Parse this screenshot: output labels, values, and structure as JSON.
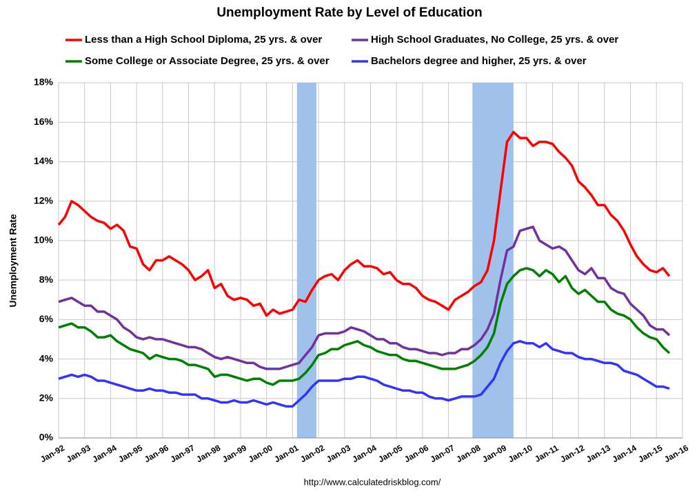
{
  "chart_data": {
    "type": "line",
    "title": "Unemployment Rate by Level of Education",
    "y_label": "Unemployment Rate",
    "source": "http://www.calculatedriskblog.com/",
    "x": [
      1992,
      1992.25,
      1992.5,
      1992.75,
      1993,
      1993.25,
      1993.5,
      1993.75,
      1994,
      1994.25,
      1994.5,
      1994.75,
      1995,
      1995.25,
      1995.5,
      1995.75,
      1996,
      1996.25,
      1996.5,
      1996.75,
      1997,
      1997.25,
      1997.5,
      1997.75,
      1998,
      1998.25,
      1998.5,
      1998.75,
      1999,
      1999.25,
      1999.5,
      1999.75,
      2000,
      2000.25,
      2000.5,
      2000.75,
      2001,
      2001.25,
      2001.5,
      2001.75,
      2002,
      2002.25,
      2002.5,
      2002.75,
      2003,
      2003.25,
      2003.5,
      2003.75,
      2004,
      2004.25,
      2004.5,
      2004.75,
      2005,
      2005.25,
      2005.5,
      2005.75,
      2006,
      2006.25,
      2006.5,
      2006.75,
      2007,
      2007.25,
      2007.5,
      2007.75,
      2008,
      2008.25,
      2008.5,
      2008.75,
      2009,
      2009.25,
      2009.5,
      2009.75,
      2010,
      2010.25,
      2010.5,
      2010.75,
      2011,
      2011.25,
      2011.5,
      2011.75,
      2012,
      2012.25,
      2012.5,
      2012.75,
      2013,
      2013.25,
      2013.5,
      2013.75,
      2014,
      2014.25,
      2014.5,
      2014.75,
      2015,
      2015.25,
      2015.5
    ],
    "series": [
      {
        "name": "Less than a High School Diploma, 25 yrs. & over",
        "color": "#ff0000",
        "values": [
          10.8,
          11.2,
          12.0,
          11.8,
          11.5,
          11.2,
          11.0,
          10.9,
          10.6,
          10.8,
          10.5,
          9.7,
          9.6,
          8.8,
          8.5,
          9.0,
          9.0,
          9.2,
          9.0,
          8.8,
          8.5,
          8.0,
          8.2,
          8.5,
          7.6,
          7.8,
          7.2,
          7.0,
          7.1,
          7.0,
          6.7,
          6.8,
          6.2,
          6.5,
          6.3,
          6.4,
          6.5,
          7.0,
          6.9,
          7.5,
          8.0,
          8.2,
          8.3,
          8.0,
          8.5,
          8.8,
          9.0,
          8.7,
          8.7,
          8.6,
          8.3,
          8.4,
          8.0,
          7.8,
          7.8,
          7.6,
          7.2,
          7.0,
          6.9,
          6.7,
          6.5,
          7.0,
          7.2,
          7.4,
          7.7,
          7.9,
          8.5,
          10.0,
          12.5,
          15.0,
          15.5,
          15.2,
          15.2,
          14.8,
          15.0,
          15.0,
          14.9,
          14.5,
          14.2,
          13.8,
          13.0,
          12.7,
          12.3,
          11.8,
          11.8,
          11.3,
          11.0,
          10.5,
          9.8,
          9.2,
          8.8,
          8.5,
          8.4,
          8.6,
          8.2
        ]
      },
      {
        "name": "High School Graduates, No College, 25 yrs. & over",
        "color": "#7030a0",
        "values": [
          6.9,
          7.0,
          7.1,
          6.9,
          6.7,
          6.7,
          6.4,
          6.4,
          6.2,
          6.0,
          5.6,
          5.4,
          5.1,
          5.0,
          5.1,
          5.0,
          5.0,
          4.9,
          4.8,
          4.7,
          4.6,
          4.6,
          4.5,
          4.3,
          4.1,
          4.0,
          4.1,
          4.0,
          3.9,
          3.8,
          3.8,
          3.6,
          3.5,
          3.5,
          3.5,
          3.6,
          3.7,
          3.8,
          4.2,
          4.6,
          5.2,
          5.3,
          5.3,
          5.3,
          5.4,
          5.6,
          5.5,
          5.4,
          5.2,
          5.0,
          5.0,
          4.8,
          4.8,
          4.6,
          4.5,
          4.5,
          4.4,
          4.3,
          4.3,
          4.2,
          4.3,
          4.3,
          4.5,
          4.5,
          4.7,
          5.0,
          5.5,
          6.3,
          8.0,
          9.5,
          9.7,
          10.5,
          10.6,
          10.7,
          10.0,
          9.8,
          9.6,
          9.7,
          9.5,
          9.0,
          8.5,
          8.3,
          8.6,
          8.1,
          8.1,
          7.6,
          7.4,
          7.3,
          6.8,
          6.5,
          6.2,
          5.7,
          5.5,
          5.5,
          5.2
        ]
      },
      {
        "name": "Some College or Associate Degree, 25 yrs. & over",
        "color": "#008000",
        "values": [
          5.6,
          5.7,
          5.8,
          5.6,
          5.6,
          5.4,
          5.1,
          5.1,
          5.2,
          4.9,
          4.7,
          4.5,
          4.4,
          4.3,
          4.0,
          4.2,
          4.1,
          4.0,
          4.0,
          3.9,
          3.7,
          3.7,
          3.6,
          3.5,
          3.1,
          3.2,
          3.2,
          3.1,
          3.0,
          2.9,
          3.0,
          3.0,
          2.8,
          2.7,
          2.9,
          2.9,
          2.9,
          3.0,
          3.3,
          3.7,
          4.2,
          4.3,
          4.5,
          4.5,
          4.7,
          4.8,
          4.9,
          4.7,
          4.6,
          4.4,
          4.3,
          4.2,
          4.2,
          4.0,
          3.9,
          3.9,
          3.8,
          3.7,
          3.6,
          3.5,
          3.5,
          3.5,
          3.6,
          3.7,
          3.9,
          4.2,
          4.6,
          5.3,
          6.8,
          7.8,
          8.2,
          8.5,
          8.6,
          8.5,
          8.2,
          8.5,
          8.3,
          7.9,
          8.2,
          7.6,
          7.3,
          7.5,
          7.2,
          6.9,
          6.9,
          6.5,
          6.3,
          6.2,
          6.0,
          5.6,
          5.3,
          5.1,
          5.0,
          4.6,
          4.3
        ]
      },
      {
        "name": "Bachelors degree and higher, 25 yrs. & over",
        "color": "#3333ff",
        "values": [
          3.0,
          3.1,
          3.2,
          3.1,
          3.2,
          3.1,
          2.9,
          2.9,
          2.8,
          2.7,
          2.6,
          2.5,
          2.4,
          2.4,
          2.5,
          2.4,
          2.4,
          2.3,
          2.3,
          2.2,
          2.2,
          2.2,
          2.0,
          2.0,
          1.9,
          1.8,
          1.8,
          1.9,
          1.8,
          1.8,
          1.9,
          1.8,
          1.7,
          1.8,
          1.7,
          1.6,
          1.6,
          1.9,
          2.2,
          2.6,
          2.9,
          2.9,
          2.9,
          2.9,
          3.0,
          3.0,
          3.1,
          3.1,
          3.0,
          2.9,
          2.7,
          2.6,
          2.5,
          2.4,
          2.4,
          2.3,
          2.3,
          2.1,
          2.0,
          2.0,
          1.9,
          2.0,
          2.1,
          2.1,
          2.1,
          2.2,
          2.6,
          3.0,
          3.8,
          4.4,
          4.8,
          4.9,
          4.8,
          4.8,
          4.6,
          4.8,
          4.5,
          4.4,
          4.3,
          4.3,
          4.1,
          4.0,
          4.0,
          3.9,
          3.8,
          3.8,
          3.7,
          3.4,
          3.3,
          3.2,
          3.0,
          2.8,
          2.6,
          2.6,
          2.5
        ]
      }
    ],
    "shaded_regions": [
      [
        2001.17,
        2001.92
      ],
      [
        2007.92,
        2009.5
      ]
    ],
    "shaded_color": "#9fc1ea",
    "xlim": [
      1992,
      2016
    ],
    "xticks": [
      {
        "value": 1992,
        "label": "Jan-92"
      },
      {
        "value": 1993,
        "label": "Jan-93"
      },
      {
        "value": 1994,
        "label": "Jan-94"
      },
      {
        "value": 1995,
        "label": "Jan-95"
      },
      {
        "value": 1996,
        "label": "Jan-96"
      },
      {
        "value": 1997,
        "label": "Jan-97"
      },
      {
        "value": 1998,
        "label": "Jan-98"
      },
      {
        "value": 1999,
        "label": "Jan-99"
      },
      {
        "value": 2000,
        "label": "Jan-00"
      },
      {
        "value": 2001,
        "label": "Jan-01"
      },
      {
        "value": 2002,
        "label": "Jan-02"
      },
      {
        "value": 2003,
        "label": "Jan-03"
      },
      {
        "value": 2004,
        "label": "Jan-04"
      },
      {
        "value": 2005,
        "label": "Jan-05"
      },
      {
        "value": 2006,
        "label": "Jan-06"
      },
      {
        "value": 2007,
        "label": "Jan-07"
      },
      {
        "value": 2008,
        "label": "Jan-08"
      },
      {
        "value": 2009,
        "label": "Jan-09"
      },
      {
        "value": 2010,
        "label": "Jan-10"
      },
      {
        "value": 2011,
        "label": "Jan-11"
      },
      {
        "value": 2012,
        "label": "Jan-12"
      },
      {
        "value": 2013,
        "label": "Jan-13"
      },
      {
        "value": 2014,
        "label": "Jan-14"
      },
      {
        "value": 2015,
        "label": "Jan-15"
      },
      {
        "value": 2016,
        "label": "Jan-16"
      }
    ],
    "ylim": [
      0,
      18
    ],
    "yticks": [
      {
        "value": 0,
        "label": "0%"
      },
      {
        "value": 2,
        "label": "2%"
      },
      {
        "value": 4,
        "label": "4%"
      },
      {
        "value": 6,
        "label": "6%"
      },
      {
        "value": 8,
        "label": "8%"
      },
      {
        "value": 10,
        "label": "10%"
      },
      {
        "value": 12,
        "label": "12%"
      },
      {
        "value": 14,
        "label": "14%"
      },
      {
        "value": 16,
        "label": "16%"
      },
      {
        "value": 18,
        "label": "18%"
      }
    ],
    "grid": true,
    "legend": "top"
  }
}
